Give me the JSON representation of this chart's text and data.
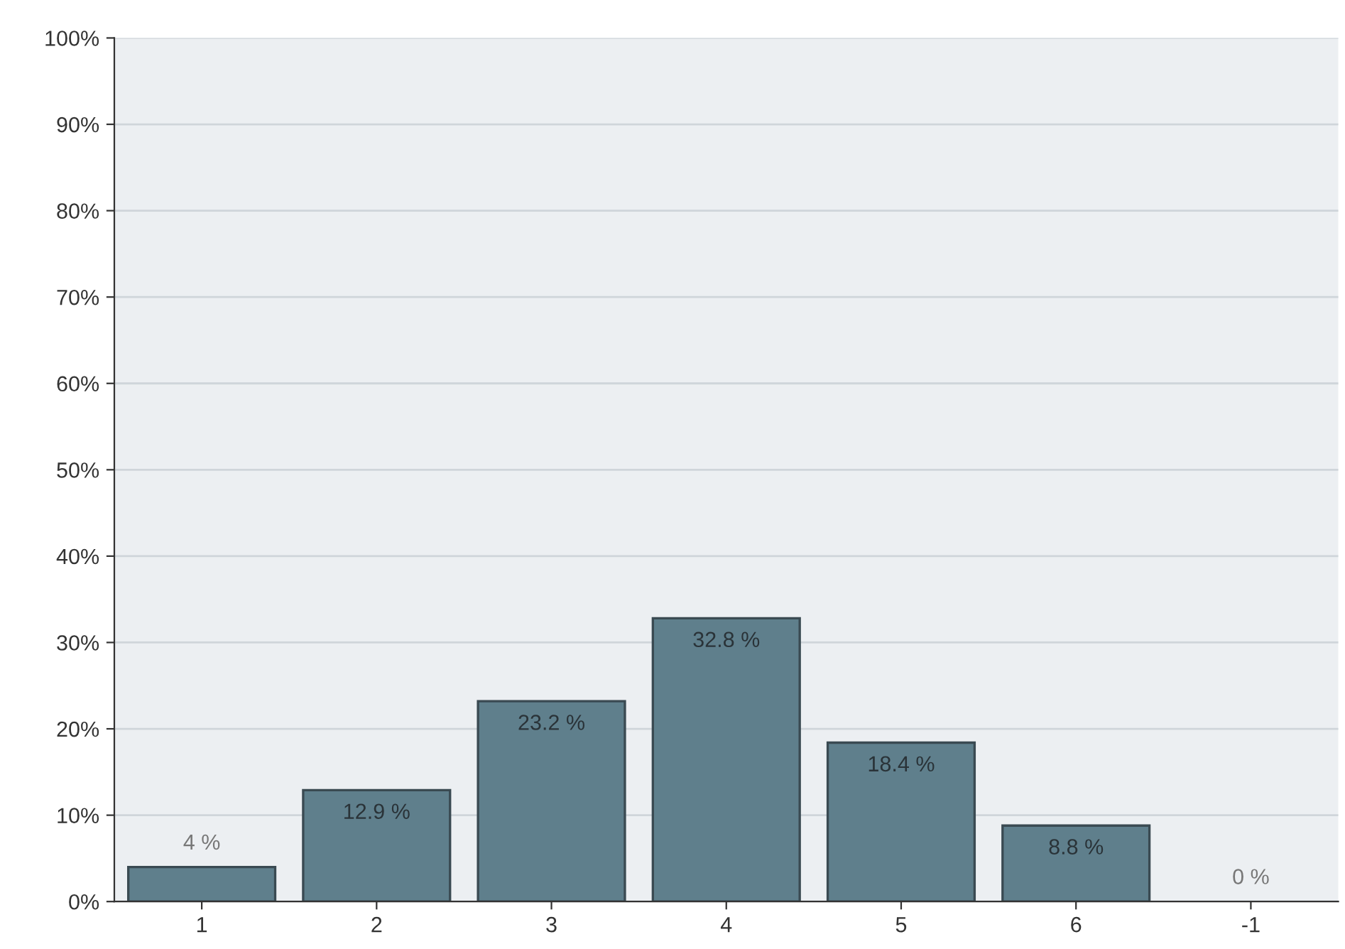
{
  "chart_data": {
    "type": "bar",
    "categories": [
      "1",
      "2",
      "3",
      "4",
      "5",
      "6",
      "-1"
    ],
    "values": [
      4,
      12.9,
      23.2,
      32.8,
      18.4,
      8.8,
      0
    ],
    "value_labels": [
      "4 %",
      "12.9 %",
      "23.2 %",
      "32.8 %",
      "18.4 %",
      "8.8 %",
      "0 %"
    ],
    "color": "#5f7f8c",
    "ylim": [
      0,
      100
    ],
    "yticks": [
      {
        "value": 0,
        "label": "0%"
      },
      {
        "value": 10,
        "label": "10%"
      },
      {
        "value": 20,
        "label": "20%"
      },
      {
        "value": 30,
        "label": "30%"
      },
      {
        "value": 40,
        "label": "40%"
      },
      {
        "value": 50,
        "label": "50%"
      },
      {
        "value": 60,
        "label": "60%"
      },
      {
        "value": 70,
        "label": "70%"
      },
      {
        "value": 80,
        "label": "80%"
      },
      {
        "value": 90,
        "label": "90%"
      },
      {
        "value": 100,
        "label": "100%"
      }
    ],
    "grid": "y"
  }
}
